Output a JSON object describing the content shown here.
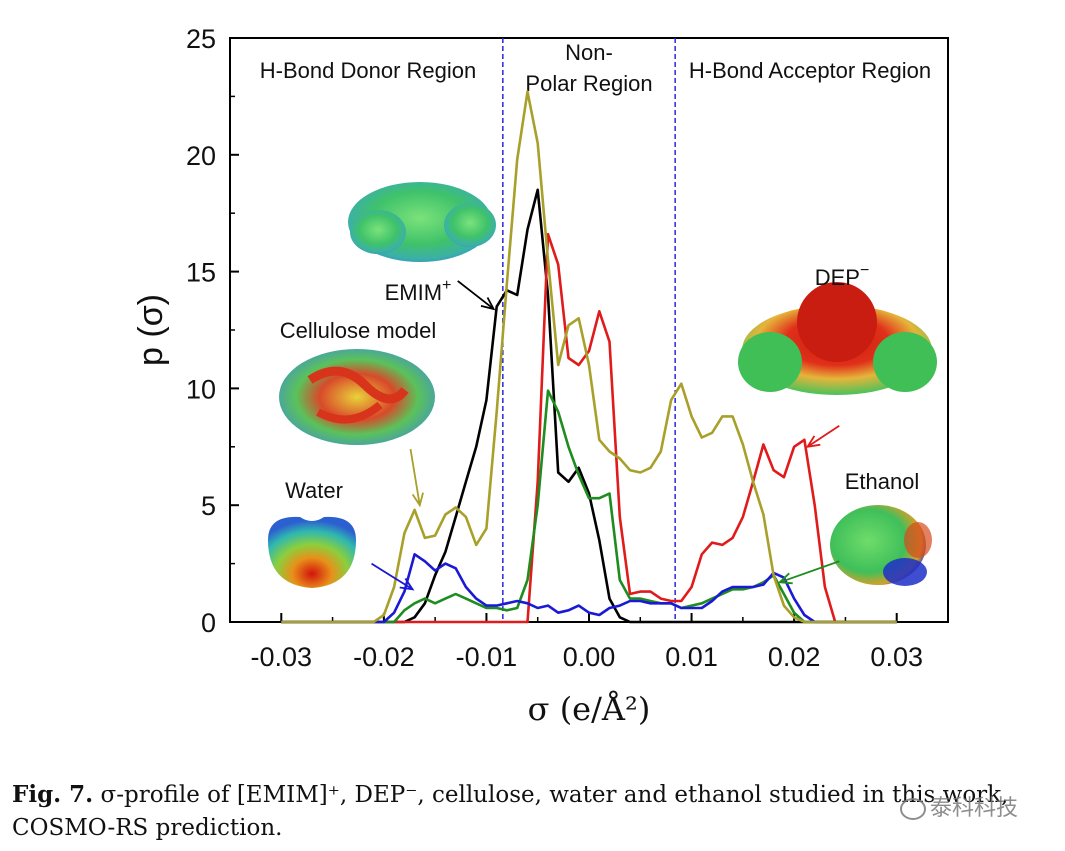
{
  "chart_data": {
    "type": "line",
    "xlabel": "σ (e/Å²)",
    "ylabel": "p (σ)",
    "xlim": [
      -0.035,
      0.035
    ],
    "ylim": [
      0,
      25
    ],
    "xticks": [
      -0.03,
      -0.02,
      -0.01,
      0.0,
      0.01,
      0.02,
      0.03
    ],
    "xtick_labels": [
      "-0.03",
      "-0.02",
      "-0.01",
      "0.00",
      "0.01",
      "0.02",
      "0.03"
    ],
    "yticks": [
      0,
      5,
      10,
      15,
      20,
      25
    ],
    "ytick_labels": [
      "0",
      "5",
      "10",
      "15",
      "20",
      "25"
    ],
    "grid": false,
    "region_lines": [
      -0.0084,
      0.0084
    ],
    "regions": [
      {
        "label": "H-Bond Donor Region"
      },
      {
        "label": "Non-Polar Region"
      },
      {
        "label": "H-Bond Acceptor Region"
      }
    ],
    "series": [
      {
        "name": "EMIM",
        "color": "#000000",
        "points": [
          [
            -0.03,
            0
          ],
          [
            -0.018,
            0
          ],
          [
            -0.017,
            0.2
          ],
          [
            -0.016,
            0.8
          ],
          [
            -0.015,
            2.0
          ],
          [
            -0.014,
            3.0
          ],
          [
            -0.013,
            4.5
          ],
          [
            -0.012,
            6.0
          ],
          [
            -0.011,
            7.5
          ],
          [
            -0.01,
            9.5
          ],
          [
            -0.009,
            13.5
          ],
          [
            -0.008,
            14.2
          ],
          [
            -0.007,
            14.0
          ],
          [
            -0.006,
            16.8
          ],
          [
            -0.005,
            18.5
          ],
          [
            -0.004,
            14.0
          ],
          [
            -0.003,
            6.4
          ],
          [
            -0.002,
            6.0
          ],
          [
            -0.001,
            6.6
          ],
          [
            0.0,
            5.5
          ],
          [
            0.001,
            3.5
          ],
          [
            0.002,
            1.0
          ],
          [
            0.003,
            0.2
          ],
          [
            0.004,
            0
          ],
          [
            0.03,
            0
          ]
        ]
      },
      {
        "name": "DEP",
        "color": "#e01b1b",
        "points": [
          [
            -0.03,
            0
          ],
          [
            -0.006,
            0
          ],
          [
            -0.005,
            6.0
          ],
          [
            -0.004,
            16.6
          ],
          [
            -0.003,
            15.3
          ],
          [
            -0.002,
            11.3
          ],
          [
            -0.001,
            11.0
          ],
          [
            0.0,
            11.6
          ],
          [
            0.001,
            13.3
          ],
          [
            0.002,
            12.0
          ],
          [
            0.003,
            4.5
          ],
          [
            0.004,
            1.2
          ],
          [
            0.005,
            1.3
          ],
          [
            0.006,
            1.3
          ],
          [
            0.007,
            1.0
          ],
          [
            0.008,
            0.9
          ],
          [
            0.009,
            0.9
          ],
          [
            0.01,
            1.5
          ],
          [
            0.011,
            2.9
          ],
          [
            0.012,
            3.4
          ],
          [
            0.013,
            3.3
          ],
          [
            0.014,
            3.6
          ],
          [
            0.015,
            4.5
          ],
          [
            0.016,
            6.0
          ],
          [
            0.017,
            7.6
          ],
          [
            0.018,
            6.5
          ],
          [
            0.019,
            6.2
          ],
          [
            0.02,
            7.5
          ],
          [
            0.021,
            7.8
          ],
          [
            0.022,
            5.0
          ],
          [
            0.023,
            1.5
          ],
          [
            0.024,
            0
          ],
          [
            0.03,
            0
          ]
        ]
      },
      {
        "name": "Cellulose",
        "color": "#1e8c1e",
        "points": [
          [
            -0.03,
            0
          ],
          [
            -0.019,
            0
          ],
          [
            -0.018,
            0.5
          ],
          [
            -0.017,
            0.8
          ],
          [
            -0.016,
            1.0
          ],
          [
            -0.015,
            0.8
          ],
          [
            -0.014,
            1.0
          ],
          [
            -0.013,
            1.2
          ],
          [
            -0.012,
            1.0
          ],
          [
            -0.011,
            0.8
          ],
          [
            -0.01,
            0.6
          ],
          [
            -0.009,
            0.6
          ],
          [
            -0.008,
            0.5
          ],
          [
            -0.007,
            0.6
          ],
          [
            -0.006,
            1.8
          ],
          [
            -0.005,
            5.0
          ],
          [
            -0.004,
            9.9
          ],
          [
            -0.003,
            9.0
          ],
          [
            -0.002,
            7.5
          ],
          [
            -0.001,
            6.3
          ],
          [
            0.0,
            5.3
          ],
          [
            0.001,
            5.3
          ],
          [
            0.002,
            5.5
          ],
          [
            0.003,
            1.8
          ],
          [
            0.004,
            1.0
          ],
          [
            0.005,
            1.0
          ],
          [
            0.006,
            0.9
          ],
          [
            0.007,
            0.8
          ],
          [
            0.008,
            0.8
          ],
          [
            0.009,
            0.6
          ],
          [
            0.01,
            0.7
          ],
          [
            0.011,
            0.8
          ],
          [
            0.012,
            1.0
          ],
          [
            0.013,
            1.2
          ],
          [
            0.014,
            1.4
          ],
          [
            0.015,
            1.4
          ],
          [
            0.016,
            1.5
          ],
          [
            0.017,
            1.7
          ],
          [
            0.018,
            2.0
          ],
          [
            0.019,
            1.2
          ],
          [
            0.02,
            0.4
          ],
          [
            0.021,
            0
          ],
          [
            0.03,
            0
          ]
        ]
      },
      {
        "name": "Water",
        "color": "#1a1ad6",
        "points": [
          [
            -0.03,
            0
          ],
          [
            -0.02,
            0
          ],
          [
            -0.019,
            0.4
          ],
          [
            -0.018,
            1.3
          ],
          [
            -0.017,
            2.9
          ],
          [
            -0.016,
            2.6
          ],
          [
            -0.015,
            2.2
          ],
          [
            -0.014,
            2.5
          ],
          [
            -0.013,
            2.3
          ],
          [
            -0.012,
            1.5
          ],
          [
            -0.011,
            1.0
          ],
          [
            -0.01,
            0.7
          ],
          [
            -0.009,
            0.7
          ],
          [
            -0.008,
            0.8
          ],
          [
            -0.007,
            0.9
          ],
          [
            -0.006,
            0.8
          ],
          [
            -0.005,
            0.6
          ],
          [
            -0.004,
            0.7
          ],
          [
            -0.003,
            0.4
          ],
          [
            -0.002,
            0.5
          ],
          [
            -0.001,
            0.7
          ],
          [
            0.0,
            0.4
          ],
          [
            0.001,
            0.3
          ],
          [
            0.002,
            0.6
          ],
          [
            0.003,
            0.7
          ],
          [
            0.004,
            0.9
          ],
          [
            0.005,
            0.9
          ],
          [
            0.006,
            0.8
          ],
          [
            0.007,
            0.8
          ],
          [
            0.008,
            0.8
          ],
          [
            0.009,
            0.6
          ],
          [
            0.01,
            0.6
          ],
          [
            0.011,
            0.6
          ],
          [
            0.012,
            0.9
          ],
          [
            0.013,
            1.3
          ],
          [
            0.014,
            1.5
          ],
          [
            0.015,
            1.5
          ],
          [
            0.016,
            1.5
          ],
          [
            0.017,
            1.6
          ],
          [
            0.018,
            2.1
          ],
          [
            0.019,
            1.9
          ],
          [
            0.02,
            1.0
          ],
          [
            0.021,
            0.3
          ],
          [
            0.022,
            0
          ],
          [
            0.03,
            0
          ]
        ]
      },
      {
        "name": "Ethanol",
        "color": "#a8a02a",
        "points": [
          [
            -0.03,
            0
          ],
          [
            -0.021,
            0
          ],
          [
            -0.02,
            0.3
          ],
          [
            -0.019,
            1.5
          ],
          [
            -0.018,
            3.8
          ],
          [
            -0.017,
            4.8
          ],
          [
            -0.016,
            3.6
          ],
          [
            -0.015,
            3.7
          ],
          [
            -0.014,
            4.6
          ],
          [
            -0.013,
            4.9
          ],
          [
            -0.012,
            4.5
          ],
          [
            -0.011,
            3.3
          ],
          [
            -0.01,
            4.0
          ],
          [
            -0.009,
            9.0
          ],
          [
            -0.008,
            14.5
          ],
          [
            -0.007,
            19.8
          ],
          [
            -0.006,
            22.7
          ],
          [
            -0.005,
            20.5
          ],
          [
            -0.004,
            15.5
          ],
          [
            -0.003,
            11.0
          ],
          [
            -0.002,
            12.7
          ],
          [
            -0.001,
            13.0
          ],
          [
            0.0,
            11.0
          ],
          [
            0.001,
            7.8
          ],
          [
            0.002,
            7.3
          ],
          [
            0.003,
            7.0
          ],
          [
            0.004,
            6.5
          ],
          [
            0.005,
            6.4
          ],
          [
            0.006,
            6.6
          ],
          [
            0.007,
            7.3
          ],
          [
            0.008,
            9.5
          ],
          [
            0.009,
            10.2
          ],
          [
            0.01,
            8.8
          ],
          [
            0.011,
            7.9
          ],
          [
            0.012,
            8.1
          ],
          [
            0.013,
            8.8
          ],
          [
            0.014,
            8.8
          ],
          [
            0.015,
            7.6
          ],
          [
            0.016,
            6.0
          ],
          [
            0.017,
            4.6
          ],
          [
            0.018,
            2.0
          ],
          [
            0.019,
            0.7
          ],
          [
            0.02,
            0.2
          ],
          [
            0.021,
            0
          ],
          [
            0.03,
            0
          ]
        ]
      }
    ],
    "annotations": [
      {
        "label": "EMIM",
        "superscript": "+",
        "color": "#3a3ad0",
        "arrow_color": "#000000",
        "arrow_from": [
          -0.0128,
          14.6
        ],
        "arrow_to": [
          -0.0093,
          13.4
        ],
        "molecule": "emim"
      },
      {
        "label": "DEP",
        "superscript": "−",
        "color": "#3a3ad0",
        "arrow_color": "#e01b1b",
        "arrow_from": [
          0.0244,
          8.4
        ],
        "arrow_to": [
          0.0213,
          7.5
        ],
        "molecule": "dep"
      },
      {
        "label": "Cellulose model",
        "superscript": "",
        "color": "#3a3ad0",
        "arrow_color": "#a8a02a",
        "arrow_from": [
          -0.0174,
          7.4
        ],
        "arrow_to": [
          -0.0165,
          5.0
        ],
        "molecule": "cellulose"
      },
      {
        "label": "Water",
        "superscript": "",
        "color": "#3a3ad0",
        "arrow_color": "#1a1ad6",
        "arrow_from": [
          -0.0212,
          2.5
        ],
        "arrow_to": [
          -0.0172,
          1.4
        ],
        "molecule": "water"
      },
      {
        "label": "Ethanol",
        "superscript": "",
        "color": "#3a3ad0",
        "arrow_color": "#1e8c1e",
        "arrow_from": [
          0.0244,
          2.6
        ],
        "arrow_to": [
          0.0186,
          1.7
        ],
        "molecule": "ethanol"
      }
    ]
  },
  "caption": {
    "fig_label": "Fig. 7.",
    "text": " σ-profile of [EMIM]⁺, DEP⁻, cellulose, water and ethanol studied in this work, COSMO-RS prediction."
  },
  "watermark": {
    "text": "泰科科技"
  }
}
